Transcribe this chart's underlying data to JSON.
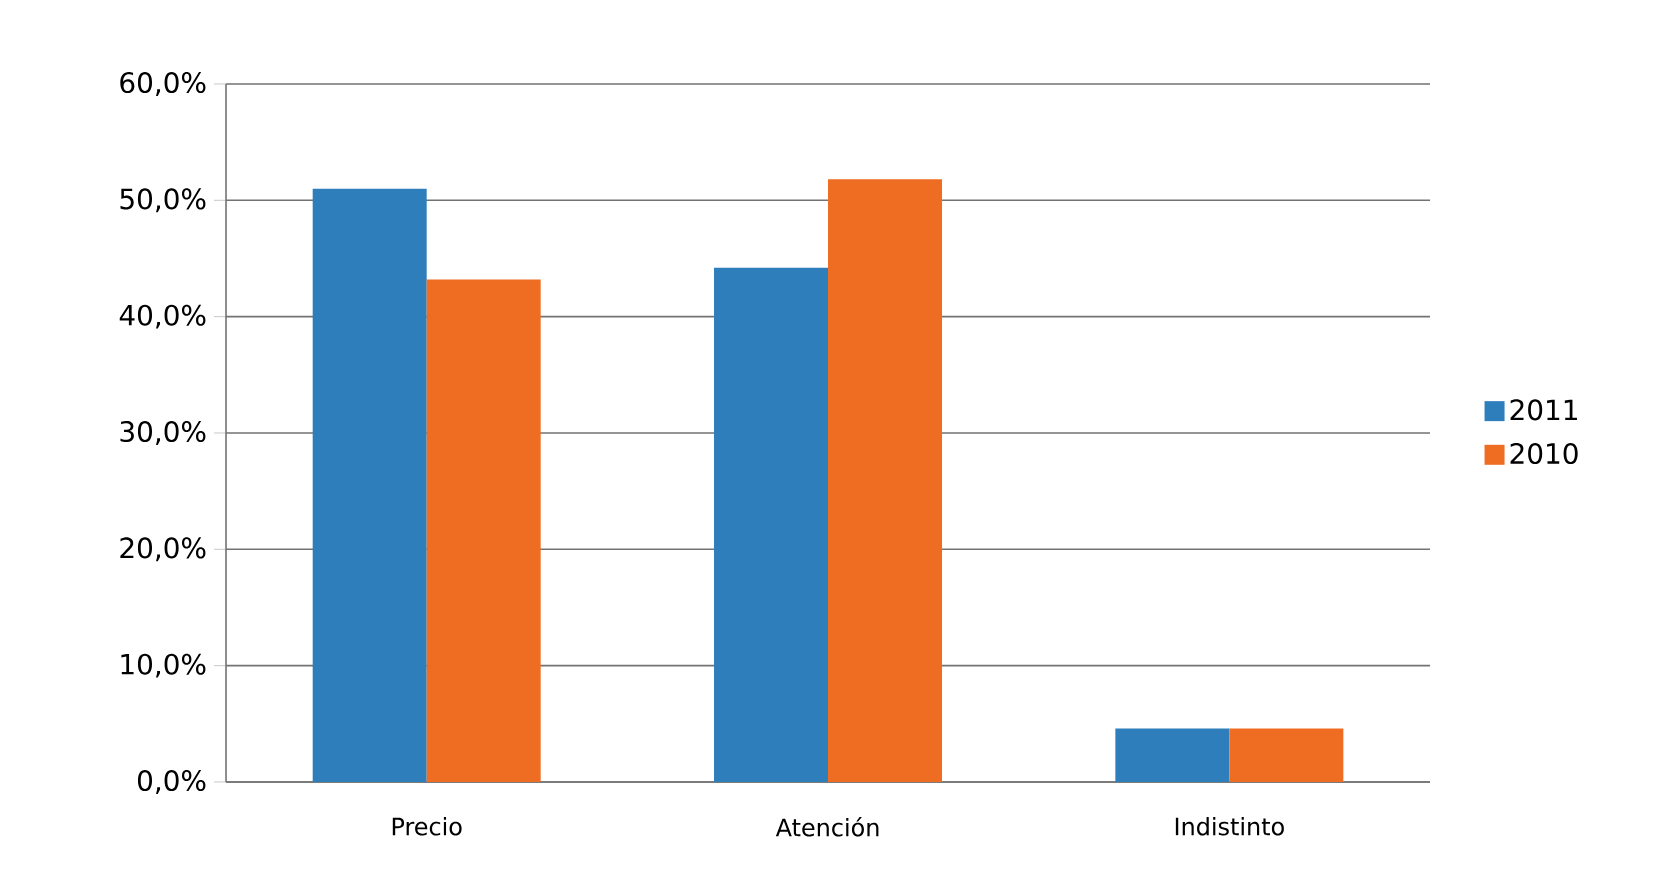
{
  "chart_data": {
    "type": "bar",
    "categories": [
      "Precio",
      "Atención",
      "Indistinto"
    ],
    "series": [
      {
        "name": "2011",
        "color": "#2e7ebc",
        "values": [
          51.0,
          44.2,
          4.6
        ]
      },
      {
        "name": "2010",
        "color": "#ef6d22",
        "values": [
          43.2,
          51.8,
          4.6
        ]
      }
    ],
    "ylim": [
      0,
      60
    ],
    "yticks": [
      {
        "value": 0,
        "label": "0,0%"
      },
      {
        "value": 10,
        "label": "10,0%"
      },
      {
        "value": 20,
        "label": "20,0%"
      },
      {
        "value": 30,
        "label": "30,0%"
      },
      {
        "value": 40,
        "label": "40,0%"
      },
      {
        "value": 50,
        "label": "50,0%"
      },
      {
        "value": 60,
        "label": "60,0%"
      }
    ],
    "grid": "y",
    "legend": "right"
  }
}
